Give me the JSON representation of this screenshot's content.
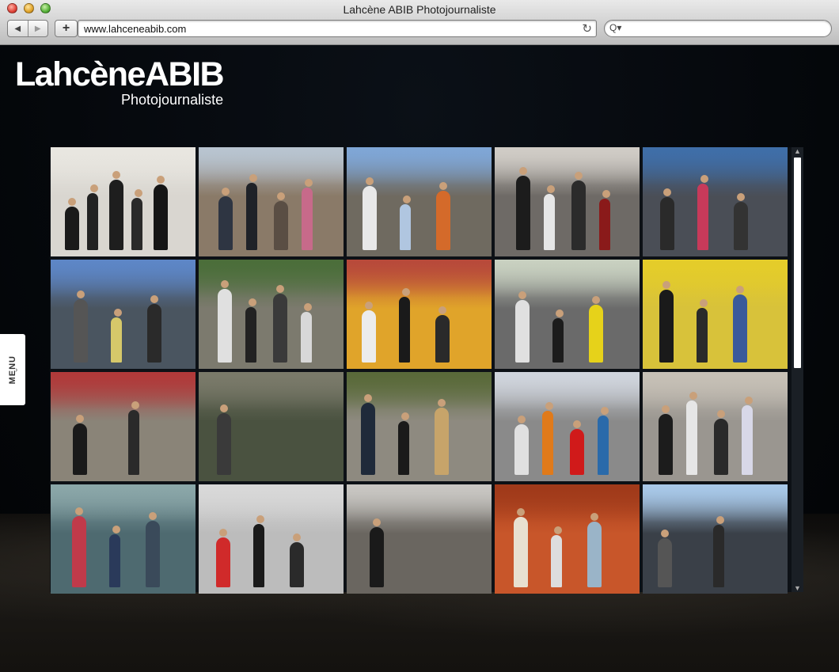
{
  "window": {
    "title": "Lahcène ABIB Photojournaliste"
  },
  "toolbar": {
    "back_glyph": "◀",
    "forward_glyph": "▶",
    "add_glyph": "+",
    "url": "www.lahceneabib.com",
    "reload_glyph": "↻",
    "search_glyph": "Q▾",
    "search_placeholder": ""
  },
  "site": {
    "logo_name": "LahcèneABIB",
    "logo_subtitle": "Photojournaliste",
    "menu_label": "MENU",
    "menu_arrow": "›"
  },
  "scroll": {
    "up": "▲",
    "down": "▼"
  },
  "gallery": {
    "tiles": [
      {
        "name": "photo-businessmen-row",
        "bg": "#d9d6d0",
        "sky": "#e8e6e0",
        "figs": [
          "#1a1a1a",
          "#222",
          "#1e1e1e",
          "#2a2a2a",
          "#151515"
        ]
      },
      {
        "name": "photo-street-crowd",
        "bg": "#8a7a68",
        "sky": "#b8c4d0",
        "figs": [
          "#2e3542",
          "#1f2228",
          "#5a4e44",
          "#c76a8a"
        ]
      },
      {
        "name": "photo-construction-site",
        "bg": "#6f6a60",
        "sky": "#7fa6d6",
        "figs": [
          "#e8e8e8",
          "#b0c6e0",
          "#d46a2a"
        ]
      },
      {
        "name": "photo-sidewalk-walkers",
        "bg": "#6e6a66",
        "sky": "#d0ccc6",
        "figs": [
          "#1c1c1c",
          "#e6e6e6",
          "#2b2b2b",
          "#8a1a1a"
        ]
      },
      {
        "name": "photo-plaza-skyscraper",
        "bg": "#4a4e56",
        "sky": "#3f6ea8",
        "figs": [
          "#2a2a2a",
          "#c73a5a",
          "#333"
        ]
      },
      {
        "name": "photo-city-towers",
        "bg": "#4a5560",
        "sky": "#5d86c6",
        "figs": [
          "#555",
          "#d6c86a",
          "#2a2a2a"
        ]
      },
      {
        "name": "photo-park-walkers",
        "bg": "#7c7a6e",
        "sky": "#4b6e3a",
        "figs": [
          "#e0e0e0",
          "#222",
          "#3a3a3a",
          "#d8d8d8"
        ]
      },
      {
        "name": "photo-yellow-taxi",
        "bg": "#e0a42a",
        "sky": "#b84a3a",
        "figs": [
          "#ececec",
          "#1a1a1a",
          "#2a2a2a"
        ]
      },
      {
        "name": "photo-umbrellas-street",
        "bg": "#6a6a6a",
        "sky": "#c8d0c0",
        "figs": [
          "#e0e0e0",
          "#1c1c1c",
          "#e6d21a"
        ]
      },
      {
        "name": "photo-yellow-mural",
        "bg": "#d8c23a",
        "sky": "#e4cc2a",
        "figs": [
          "#1a1a1a",
          "#2a2a2a",
          "#3a5a9a"
        ]
      },
      {
        "name": "photo-stock-exchange",
        "bg": "#8a8478",
        "sky": "#b03a3a",
        "figs": [
          "#1a1a1a",
          "#2a2a2a"
        ]
      },
      {
        "name": "photo-blurred-motion",
        "bg": "#4a5240",
        "sky": "#7a7a6a",
        "figs": [
          "#3a3a3a"
        ]
      },
      {
        "name": "photo-businessman-walking",
        "bg": "#8e8a80",
        "sky": "#5a6a3a",
        "figs": [
          "#1f2a3a",
          "#1a1a1a",
          "#c7a46a"
        ]
      },
      {
        "name": "photo-red-cart-vendor",
        "bg": "#8a8a8a",
        "sky": "#cfd4dc",
        "figs": [
          "#e0e0e0",
          "#e07a1a",
          "#d01a1a",
          "#2a6aaa"
        ]
      },
      {
        "name": "photo-crosswalk-crowd",
        "bg": "#9a9690",
        "sky": "#c6c0b6",
        "figs": [
          "#1c1c1c",
          "#e6e6e6",
          "#2a2a2a",
          "#d8d8e8"
        ]
      },
      {
        "name": "photo-loreal-window",
        "bg": "#4e6a70",
        "sky": "#8aa6a8",
        "figs": [
          "#c03a4a",
          "#2a3a5a",
          "#3a4a5a"
        ]
      },
      {
        "name": "photo-cyclist-crosswalk",
        "bg": "#bcbcbc",
        "sky": "#d8d8d8",
        "figs": [
          "#d02a2a",
          "#1a1a1a",
          "#2a2a2a"
        ]
      },
      {
        "name": "photo-man-red-tie",
        "bg": "#6a6660",
        "sky": "#c8c6c2",
        "figs": [
          "#1a1a1a"
        ]
      },
      {
        "name": "photo-news-clock",
        "bg": "#c8562a",
        "sky": "#a03a1a",
        "figs": [
          "#e8e0d0",
          "#ddd",
          "#9ab4c8"
        ]
      },
      {
        "name": "photo-sun-skyscraper",
        "bg": "#3a4048",
        "sky": "#a8c8e8",
        "figs": [
          "#555",
          "#2a2a2a"
        ]
      }
    ]
  }
}
